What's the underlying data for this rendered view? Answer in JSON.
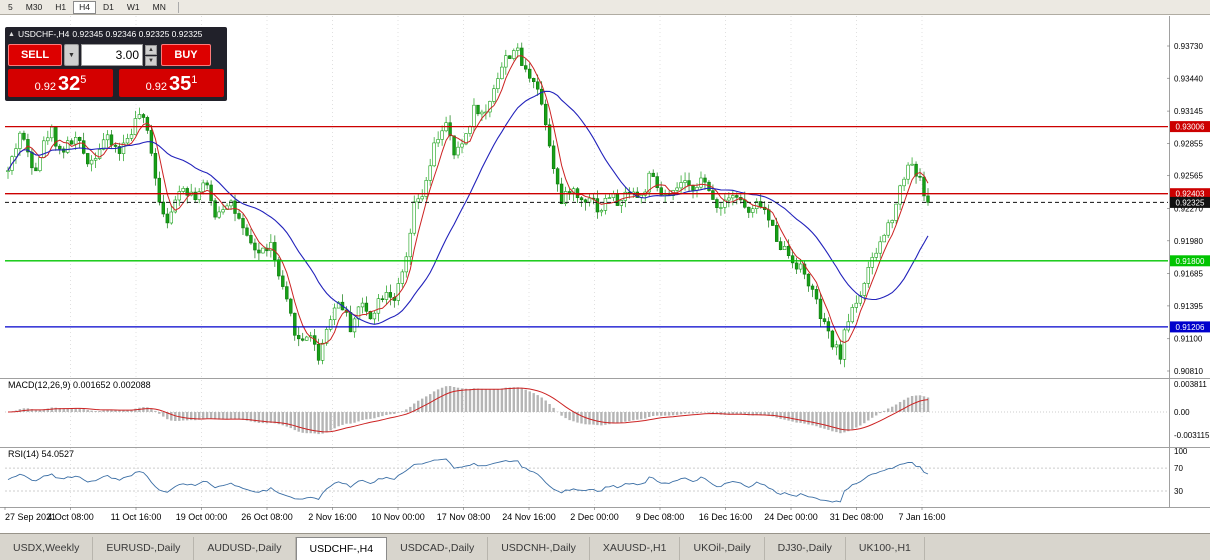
{
  "timeframe_toolbar": {
    "items": [
      {
        "label": "5",
        "active": false
      },
      {
        "label": "M30",
        "active": false
      },
      {
        "label": "H1",
        "active": false
      },
      {
        "label": "H4",
        "active": true
      },
      {
        "label": "D1",
        "active": false
      },
      {
        "label": "W1",
        "active": false
      },
      {
        "label": "MN",
        "active": false
      }
    ]
  },
  "chart_header": {
    "symbol": "USDCHF-,H4",
    "ohlc": "0.92345 0.92346 0.92325 0.92325"
  },
  "trade_panel": {
    "sell_label": "SELL",
    "buy_label": "BUY",
    "volume": "3.00",
    "sell_price_prefix": "0.92",
    "sell_price_main": "32",
    "sell_price_pip": "5",
    "buy_price_prefix": "0.92",
    "buy_price_main": "35",
    "buy_price_pip": "1"
  },
  "levels": [
    {
      "label": "0.93006",
      "price": 0.93006,
      "color": "#cc0000",
      "style": "solid",
      "current": false
    },
    {
      "label": "0.92403",
      "price": 0.92403,
      "color": "#cc0000",
      "style": "solid",
      "current": false
    },
    {
      "label": "0.91800",
      "price": 0.918,
      "color": "#00c400",
      "style": "solid",
      "current": false
    },
    {
      "label": "0.91206",
      "price": 0.91206,
      "color": "#0000cc",
      "style": "solid",
      "current": false
    },
    {
      "label": "0.92325",
      "price": 0.92325,
      "color": "#111111",
      "style": "dashed",
      "current": true
    }
  ],
  "price_axis": {
    "labels": [
      "0.93730",
      "0.93440",
      "0.93145",
      "0.92855",
      "0.92565",
      "0.92270",
      "0.91980",
      "0.91685",
      "0.91395",
      "0.91100",
      "0.90810"
    ]
  },
  "x_axis": {
    "labels": [
      "27 Sep 2021",
      "4 Oct 08:00",
      "11 Oct 16:00",
      "19 Oct 00:00",
      "26 Oct 08:00",
      "2 Nov 16:00",
      "10 Nov 00:00",
      "17 Nov 08:00",
      "24 Nov 16:00",
      "2 Dec 00:00",
      "9 Dec 08:00",
      "16 Dec 16:00",
      "24 Dec 00:00",
      "31 Dec 08:00",
      "7 Jan 16:00"
    ]
  },
  "indicators": {
    "macd": {
      "label": "MACD(12,26,9) 0.001652 0.002088",
      "axis": [
        "0.003811",
        "0.00",
        "-0.003115"
      ]
    },
    "rsi": {
      "label": "RSI(14) 54.0527",
      "axis": [
        "100",
        "70",
        "30"
      ]
    }
  },
  "bottom_tabs": {
    "items": [
      {
        "label": "USDX,Weekly",
        "active": false
      },
      {
        "label": "EURUSD-,Daily",
        "active": false
      },
      {
        "label": "AUDUSD-,Daily",
        "active": false
      },
      {
        "label": "USDCHF-,H4",
        "active": true
      },
      {
        "label": "USDCAD-,Daily",
        "active": false
      },
      {
        "label": "USDCNH-,Daily",
        "active": false
      },
      {
        "label": "XAUUSD-,H1",
        "active": false
      },
      {
        "label": "UKOil-,Daily",
        "active": false
      },
      {
        "label": "DJ30-,Daily",
        "active": false
      },
      {
        "label": "UK100-,H1",
        "active": false
      }
    ]
  },
  "chart_data": {
    "type": "candlestick",
    "symbol": "USDCHF",
    "timeframe": "H4",
    "y_min": 0.9081,
    "y_max": 0.9373,
    "n_candles": 232,
    "seed": 42,
    "current_price": 0.92325,
    "colors": {
      "up_fill": "#ffffff",
      "up_stroke": "#17a017",
      "down_fill": "#17a017",
      "down_stroke": "#0e7a0e",
      "ma_fast": "#cc2222",
      "ma_slow": "#2222bb",
      "macd_hist": "#b5b5b5",
      "macd_signal": "#cc2222",
      "rsi_line": "#3a6ea5",
      "level_red": "#cc0000",
      "level_green": "#00c400",
      "level_blue": "#0000cc",
      "sell_buy_red": "#d40000"
    },
    "price_path": [
      [
        0,
        0.926
      ],
      [
        0.013,
        0.9295
      ],
      [
        0.029,
        0.9263
      ],
      [
        0.046,
        0.93
      ],
      [
        0.057,
        0.9278
      ],
      [
        0.073,
        0.929
      ],
      [
        0.089,
        0.9268
      ],
      [
        0.105,
        0.929
      ],
      [
        0.122,
        0.9278
      ],
      [
        0.143,
        0.9312
      ],
      [
        0.154,
        0.929
      ],
      [
        0.165,
        0.9232
      ],
      [
        0.176,
        0.9215
      ],
      [
        0.187,
        0.925
      ],
      [
        0.203,
        0.9238
      ],
      [
        0.214,
        0.925
      ],
      [
        0.225,
        0.9222
      ],
      [
        0.241,
        0.9236
      ],
      [
        0.258,
        0.92
      ],
      [
        0.274,
        0.9186
      ],
      [
        0.285,
        0.9196
      ],
      [
        0.296,
        0.916
      ],
      [
        0.307,
        0.913
      ],
      [
        0.317,
        0.9105
      ],
      [
        0.328,
        0.9118
      ],
      [
        0.337,
        0.9092
      ],
      [
        0.35,
        0.913
      ],
      [
        0.361,
        0.9146
      ],
      [
        0.372,
        0.912
      ],
      [
        0.383,
        0.9142
      ],
      [
        0.393,
        0.913
      ],
      [
        0.41,
        0.9155
      ],
      [
        0.421,
        0.9146
      ],
      [
        0.432,
        0.9176
      ],
      [
        0.442,
        0.923
      ],
      [
        0.453,
        0.9242
      ],
      [
        0.464,
        0.9285
      ],
      [
        0.475,
        0.9305
      ],
      [
        0.486,
        0.9272
      ],
      [
        0.497,
        0.9292
      ],
      [
        0.508,
        0.932
      ],
      [
        0.518,
        0.9308
      ],
      [
        0.529,
        0.934
      ],
      [
        0.54,
        0.936
      ],
      [
        0.551,
        0.9372
      ],
      [
        0.562,
        0.935
      ],
      [
        0.573,
        0.9344
      ],
      [
        0.584,
        0.9308
      ],
      [
        0.595,
        0.9258
      ],
      [
        0.602,
        0.923
      ],
      [
        0.611,
        0.9246
      ],
      [
        0.622,
        0.9234
      ],
      [
        0.633,
        0.924
      ],
      [
        0.643,
        0.9224
      ],
      [
        0.654,
        0.924
      ],
      [
        0.665,
        0.923
      ],
      [
        0.676,
        0.9246
      ],
      [
        0.687,
        0.9234
      ],
      [
        0.698,
        0.9256
      ],
      [
        0.709,
        0.924
      ],
      [
        0.72,
        0.9234
      ],
      [
        0.73,
        0.925
      ],
      [
        0.741,
        0.9244
      ],
      [
        0.752,
        0.9254
      ],
      [
        0.763,
        0.924
      ],
      [
        0.774,
        0.9228
      ],
      [
        0.785,
        0.9244
      ],
      [
        0.796,
        0.9234
      ],
      [
        0.807,
        0.922
      ],
      [
        0.817,
        0.9234
      ],
      [
        0.828,
        0.9214
      ],
      [
        0.839,
        0.9196
      ],
      [
        0.85,
        0.9184
      ],
      [
        0.861,
        0.9174
      ],
      [
        0.872,
        0.9158
      ],
      [
        0.883,
        0.913
      ],
      [
        0.893,
        0.911
      ],
      [
        0.904,
        0.9094
      ],
      [
        0.915,
        0.9134
      ],
      [
        0.926,
        0.915
      ],
      [
        0.937,
        0.9174
      ],
      [
        0.948,
        0.9196
      ],
      [
        0.959,
        0.9216
      ],
      [
        0.97,
        0.9246
      ],
      [
        0.98,
        0.9272
      ],
      [
        0.991,
        0.9252
      ],
      [
        1,
        0.92325
      ]
    ]
  }
}
